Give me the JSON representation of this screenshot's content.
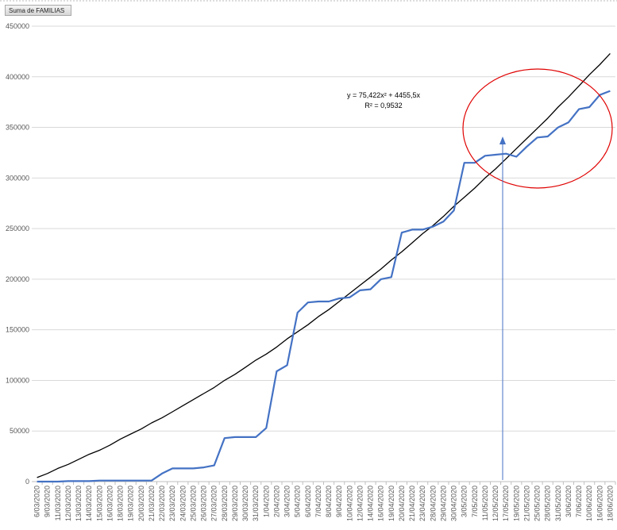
{
  "chart_data": {
    "type": "line",
    "categories": [
      "6/03/2020",
      "9/03/2020",
      "11/03/2020",
      "12/03/2020",
      "13/03/2020",
      "14/03/2020",
      "15/03/2020",
      "16/03/2020",
      "18/03/2020",
      "19/03/2020",
      "20/03/2020",
      "21/03/2020",
      "22/03/2020",
      "23/03/2020",
      "24/03/2020",
      "25/03/2020",
      "26/03/2020",
      "27/03/2020",
      "28/03/2020",
      "29/03/2020",
      "30/03/2020",
      "31/03/2020",
      "1/04/2020",
      "2/04/2020",
      "3/04/2020",
      "5/04/2020",
      "6/04/2020",
      "7/04/2020",
      "8/04/2020",
      "9/04/2020",
      "10/04/2020",
      "12/04/2020",
      "14/04/2020",
      "16/04/2020",
      "19/04/2020",
      "20/04/2020",
      "21/04/2020",
      "23/04/2020",
      "28/04/2020",
      "29/04/2020",
      "30/04/2020",
      "3/05/2020",
      "7/05/2020",
      "11/05/2020",
      "12/05/2020",
      "17/05/2020",
      "19/05/2020",
      "21/05/2020",
      "25/05/2020",
      "28/05/2020",
      "31/05/2020",
      "3/06/2020",
      "7/06/2020",
      "10/06/2020",
      "16/06/2020",
      "18/06/2020"
    ],
    "series": [
      {
        "name": "Suma de FAMILIAS",
        "color": "#4472c4",
        "values": [
          0,
          0,
          0,
          500,
          500,
          500,
          1000,
          1000,
          1000,
          1000,
          1000,
          1000,
          8000,
          13000,
          13000,
          13000,
          14000,
          16000,
          43000,
          44000,
          44000,
          44000,
          53000,
          109000,
          115000,
          167000,
          177000,
          178000,
          178000,
          181000,
          182000,
          189000,
          190000,
          200000,
          202000,
          246000,
          249000,
          249000,
          252000,
          257000,
          268000,
          315000,
          315000,
          322000,
          323000,
          324000,
          321000,
          331000,
          340000,
          341000,
          350000,
          355000,
          368000,
          370000,
          382000,
          386000
        ]
      }
    ],
    "trendline": {
      "equation": "y = 75,422x² + 4455,5x",
      "r_squared": "R² = 0,9532",
      "color": "#000000",
      "values": [
        4000,
        8000,
        13000,
        17000,
        22000,
        27000,
        31000,
        36000,
        42000,
        47000,
        52000,
        58000,
        63000,
        69000,
        75000,
        81000,
        87000,
        93000,
        100000,
        106000,
        113000,
        120000,
        126000,
        133000,
        141000,
        148000,
        155000,
        163000,
        170000,
        178000,
        186000,
        194000,
        202000,
        210000,
        219000,
        227000,
        236000,
        245000,
        253000,
        262000,
        272000,
        281000,
        290000,
        300000,
        309000,
        319000,
        329000,
        339000,
        349000,
        359000,
        370000,
        380000,
        391000,
        402000,
        412000,
        423000
      ]
    },
    "ylim": [
      0,
      450000
    ],
    "yticks": [
      0,
      50000,
      100000,
      150000,
      200000,
      250000,
      300000,
      350000,
      400000,
      450000
    ],
    "grid": true
  }
}
